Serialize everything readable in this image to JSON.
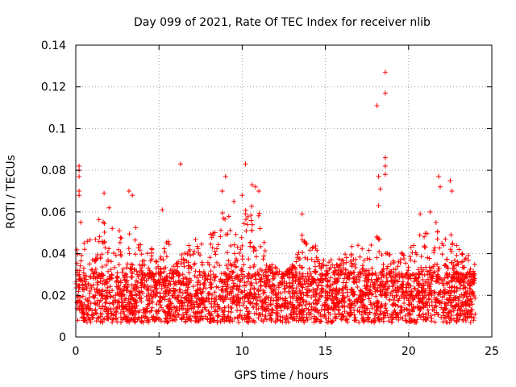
{
  "chart_data": {
    "type": "scatter",
    "title": "Day 099 of 2021, Rate Of TEC Index for receiver nlib",
    "xlabel": "GPS time / hours",
    "ylabel": "ROTI / TECUs",
    "xlim": [
      0,
      25
    ],
    "ylim": [
      0,
      0.14
    ],
    "x_ticks": [
      0,
      5,
      10,
      15,
      20,
      25
    ],
    "x_tick_labels": [
      "0",
      "5",
      "10",
      "15",
      "20",
      "25"
    ],
    "y_ticks": [
      0,
      0.02,
      0.04,
      0.06,
      0.08,
      0.1,
      0.12,
      0.14
    ],
    "y_tick_labels": [
      "0",
      "0.02",
      "0.04",
      "0.06",
      "0.08",
      "0.1",
      "0.12",
      "0.14"
    ],
    "grid": true,
    "marker": "plus",
    "color": "#ff0000",
    "series": [
      {
        "name": "ROTI",
        "x_range": [
          0,
          24
        ],
        "typical_range": [
          0.007,
          0.03
        ],
        "envelope": [
          [
            0.0,
            0.04
          ],
          [
            0.5,
            0.055
          ],
          [
            1.0,
            0.045
          ],
          [
            1.5,
            0.06
          ],
          [
            2.0,
            0.05
          ],
          [
            2.5,
            0.06
          ],
          [
            3.0,
            0.05
          ],
          [
            3.5,
            0.06
          ],
          [
            4.0,
            0.04
          ],
          [
            4.5,
            0.045
          ],
          [
            5.0,
            0.035
          ],
          [
            5.5,
            0.05
          ],
          [
            6.0,
            0.035
          ],
          [
            6.5,
            0.045
          ],
          [
            7.0,
            0.045
          ],
          [
            7.5,
            0.05
          ],
          [
            8.0,
            0.05
          ],
          [
            8.5,
            0.06
          ],
          [
            9.0,
            0.06
          ],
          [
            9.5,
            0.055
          ],
          [
            10.0,
            0.06
          ],
          [
            10.5,
            0.065
          ],
          [
            11.0,
            0.065
          ],
          [
            11.5,
            0.035
          ],
          [
            12.0,
            0.035
          ],
          [
            12.5,
            0.03
          ],
          [
            13.0,
            0.035
          ],
          [
            13.5,
            0.05
          ],
          [
            14.0,
            0.045
          ],
          [
            14.5,
            0.045
          ],
          [
            15.0,
            0.04
          ],
          [
            15.5,
            0.04
          ],
          [
            16.0,
            0.04
          ],
          [
            16.5,
            0.045
          ],
          [
            17.0,
            0.045
          ],
          [
            17.5,
            0.04
          ],
          [
            18.0,
            0.05
          ],
          [
            18.5,
            0.045
          ],
          [
            19.0,
            0.04
          ],
          [
            19.5,
            0.04
          ],
          [
            20.0,
            0.045
          ],
          [
            20.5,
            0.05
          ],
          [
            21.0,
            0.05
          ],
          [
            21.5,
            0.055
          ],
          [
            22.0,
            0.055
          ],
          [
            22.5,
            0.05
          ],
          [
            23.0,
            0.045
          ],
          [
            23.5,
            0.04
          ],
          [
            24.0,
            0.045
          ]
        ],
        "notable_points": [
          [
            0.2,
            0.082
          ],
          [
            0.2,
            0.08
          ],
          [
            0.2,
            0.077
          ],
          [
            0.2,
            0.07
          ],
          [
            0.2,
            0.068
          ],
          [
            0.3,
            0.055
          ],
          [
            0.5,
            0.045
          ],
          [
            1.7,
            0.069
          ],
          [
            2.0,
            0.062
          ],
          [
            3.2,
            0.07
          ],
          [
            3.4,
            0.068
          ],
          [
            6.3,
            0.083
          ],
          [
            5.2,
            0.061
          ],
          [
            9.0,
            0.077
          ],
          [
            8.8,
            0.07
          ],
          [
            10.2,
            0.083
          ],
          [
            10.6,
            0.073
          ],
          [
            10.8,
            0.072
          ],
          [
            11.0,
            0.07
          ],
          [
            13.6,
            0.059
          ],
          [
            18.1,
            0.111
          ],
          [
            18.2,
            0.077
          ],
          [
            18.3,
            0.071
          ],
          [
            18.2,
            0.063
          ],
          [
            18.6,
            0.127
          ],
          [
            18.6,
            0.117
          ],
          [
            18.6,
            0.086
          ],
          [
            18.6,
            0.082
          ],
          [
            18.6,
            0.078
          ],
          [
            20.7,
            0.059
          ],
          [
            21.8,
            0.077
          ],
          [
            21.9,
            0.072
          ],
          [
            22.5,
            0.075
          ],
          [
            22.6,
            0.07
          ],
          [
            21.3,
            0.06
          ],
          [
            9.5,
            0.065
          ],
          [
            10.0,
            0.068
          ]
        ]
      }
    ]
  }
}
